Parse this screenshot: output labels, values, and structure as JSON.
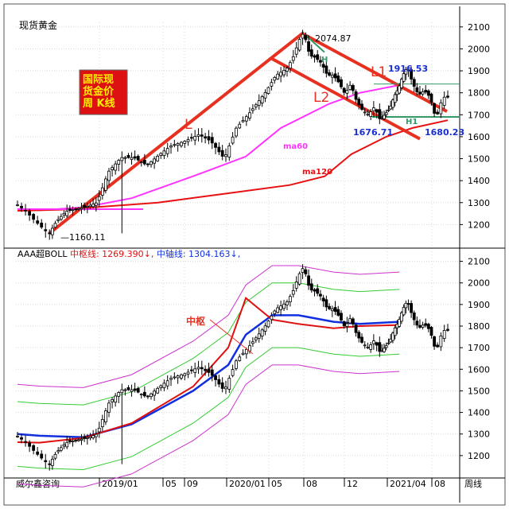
{
  "header": {
    "title": "现货黄金",
    "footer_left": "威尔鑫咨询",
    "period": "周线"
  },
  "colors": {
    "background": "#ffffff",
    "grid": "#d8d8d8",
    "axis": "#000000",
    "candle": "#000000",
    "trend": "#e83020",
    "ma60": "#ff33ff",
    "ma120": "#e81010",
    "boll_mid": "#e01010",
    "boll_axis": "#1030e0",
    "band_inner": "#33cc33",
    "band_outer": "#cc33cc",
    "h_line": "#339966",
    "badge_bg": "#dd1111",
    "badge_text": "#ffee00",
    "blue_label": "#1a2fd0"
  },
  "chart_data": [
    {
      "type": "candlestick",
      "title": "现货黄金",
      "ylim": [
        1100,
        2150
      ],
      "yticks": [
        1200,
        1300,
        1400,
        1500,
        1600,
        1700,
        1800,
        1900,
        2000,
        2100
      ],
      "xlabels": [
        "2019/01",
        "05",
        "09",
        "2020/01",
        "05",
        "08",
        "12",
        "2021/04",
        "08"
      ],
      "series": [
        {
          "name": "ma60",
          "values": [
            [
              1180,
              1270
            ],
            [
              1230,
              1265
            ],
            [
              1330,
              1278
            ],
            [
              1440,
              1320
            ],
            [
              1580,
              1420
            ],
            [
              1700,
              1510
            ],
            [
              1780,
              1640
            ],
            [
              1890,
              1750
            ],
            [
              1960,
              1800
            ],
            [
              2050,
              1835
            ]
          ]
        },
        {
          "name": "ma120",
          "values": [
            [
              1180,
              1263
            ],
            [
              1280,
              1268
            ],
            [
              1500,
              1300
            ],
            [
              1650,
              1340
            ],
            [
              1800,
              1380
            ],
            [
              1880,
              1420
            ],
            [
              1940,
              1520
            ],
            [
              2020,
              1600
            ],
            [
              2080,
              1640
            ],
            [
              2160,
              1675
            ]
          ]
        }
      ],
      "badge": [
        "国际现",
        "货金价",
        "周 K线"
      ],
      "annotations": [
        {
          "text": "2074.87",
          "value": 2074.87
        },
        {
          "text": "1916.53",
          "value": 1916.53
        },
        {
          "text": "1676.71",
          "value": 1676.71
        },
        {
          "text": "1680.23",
          "value": 1680.23
        },
        {
          "text": "1160.11",
          "value": 1160.11
        },
        {
          "text": "L"
        },
        {
          "text": "L1"
        },
        {
          "text": "L2"
        },
        {
          "text": "H"
        },
        {
          "text": "H1"
        },
        {
          "text": "ma60"
        },
        {
          "text": "ma120"
        }
      ]
    },
    {
      "type": "candlestick",
      "title": "AAA超BOLL 中枢线: 1269.390↓, 中轴线: 1304.163↓,",
      "legend_prefix": "AAA超BOLL",
      "mid_label": "中枢线: 1269.390↓,",
      "axis_label": "中轴线: 1304.163↓,",
      "ylim": [
        1100,
        2150
      ],
      "yticks": [
        1200,
        1300,
        1400,
        1500,
        1600,
        1700,
        1800,
        1900,
        2000,
        2100
      ],
      "xlabels": [
        "2019/01",
        "05",
        "09",
        "2020/01",
        "05",
        "08",
        "12",
        "2021/04",
        "08"
      ],
      "series": [
        {
          "name": "中枢线",
          "values": [
            [
              1180,
              1262
            ],
            [
              1230,
              1260
            ],
            [
              1330,
              1282
            ],
            [
              1440,
              1350
            ],
            [
              1580,
              1520
            ],
            [
              1660,
              1700
            ],
            [
              1700,
              1930
            ],
            [
              1760,
              1830
            ],
            [
              1820,
              1810
            ],
            [
              1900,
              1790
            ],
            [
              1960,
              1800
            ],
            [
              2050,
              1805
            ]
          ]
        },
        {
          "name": "中轴线",
          "values": [
            [
              1180,
              1300
            ],
            [
              1230,
              1292
            ],
            [
              1330,
              1285
            ],
            [
              1440,
              1345
            ],
            [
              1580,
              1500
            ],
            [
              1660,
              1620
            ],
            [
              1700,
              1760
            ],
            [
              1760,
              1850
            ],
            [
              1820,
              1850
            ],
            [
              1900,
              1820
            ],
            [
              1960,
              1810
            ],
            [
              2050,
              1820
            ]
          ]
        }
      ],
      "annotations": [
        {
          "text": "中枢"
        }
      ]
    }
  ]
}
